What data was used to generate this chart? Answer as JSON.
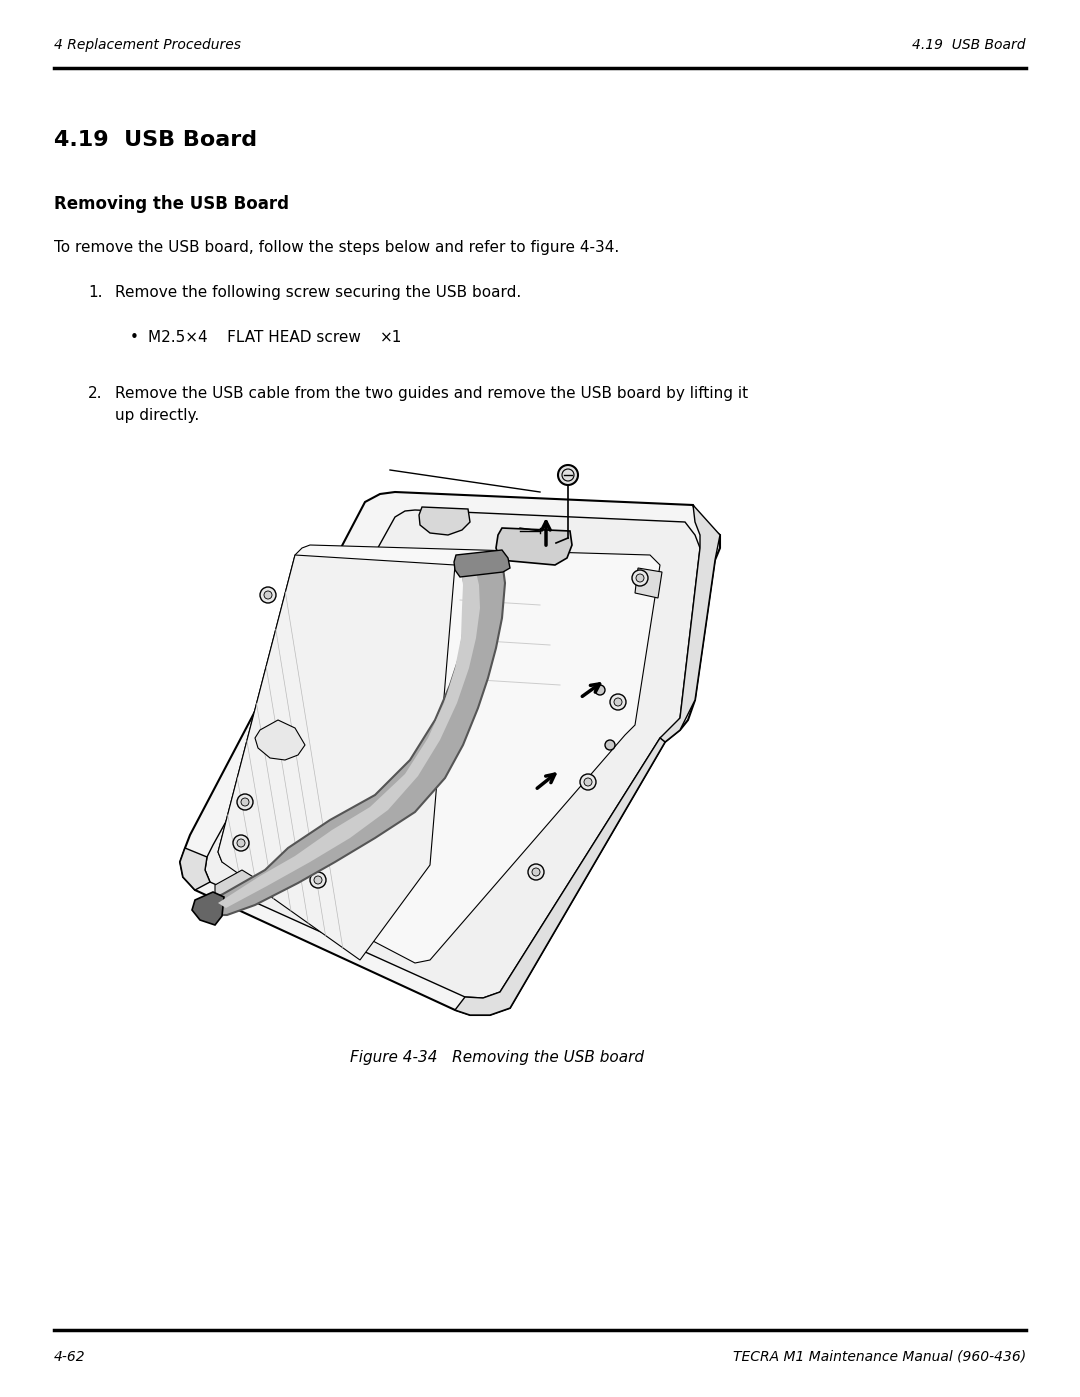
{
  "bg_color": "#ffffff",
  "header_left": "4 Replacement Procedures",
  "header_right": "4.19  USB Board",
  "footer_left": "4-62",
  "footer_right": "TECRA M1 Maintenance Manual (960-436)",
  "section_title": "4.19  USB Board",
  "subsection_title": "Removing the USB Board",
  "intro_text": "To remove the USB board, follow the steps below and refer to figure 4-34.",
  "step1_num": "1.",
  "step1_text": "Remove the following screw securing the USB board.",
  "bullet_label": "•",
  "bullet_text": "M2.5×4    FLAT HEAD screw",
  "bullet_qty": "×1",
  "step2_num": "2.",
  "step2_line1": "Remove the USB cable from the two guides and remove the USB board by lifting it",
  "step2_line2": "up directly.",
  "figure_caption": "Figure 4-34   Removing the USB board",
  "header_fontsize": 10,
  "section_fontsize": 16,
  "subsection_fontsize": 12,
  "body_fontsize": 11,
  "footer_fontsize": 10,
  "line_color": "#000000",
  "chassis_fill": "#f5f5f5",
  "chassis_inner_fill": "#eeeeee",
  "cable_fill": "#888888",
  "cable_dark": "#555555",
  "component_fill": "#d8d8d8",
  "screw_fill": "#cccccc"
}
